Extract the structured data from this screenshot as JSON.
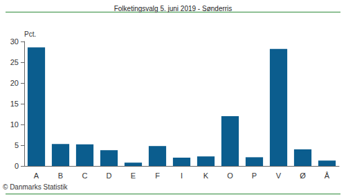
{
  "chart_data": {
    "type": "bar",
    "title": "Folketingsvalg 5. juni 2019 - Sønderris",
    "ylabel": "Pct.",
    "source": "© Danmarks Statistik",
    "categories": [
      "A",
      "B",
      "C",
      "D",
      "E",
      "F",
      "I",
      "K",
      "O",
      "P",
      "V",
      "Ø",
      "Å"
    ],
    "values": [
      28.6,
      5.3,
      5.2,
      3.8,
      0.8,
      4.8,
      2.0,
      2.3,
      12.0,
      2.1,
      28.2,
      4.0,
      1.3
    ],
    "color": "#0b5d8e",
    "ylim": [
      0,
      30
    ],
    "yticks": [
      0,
      5,
      10,
      15,
      20,
      25,
      30
    ],
    "grid": false
  }
}
